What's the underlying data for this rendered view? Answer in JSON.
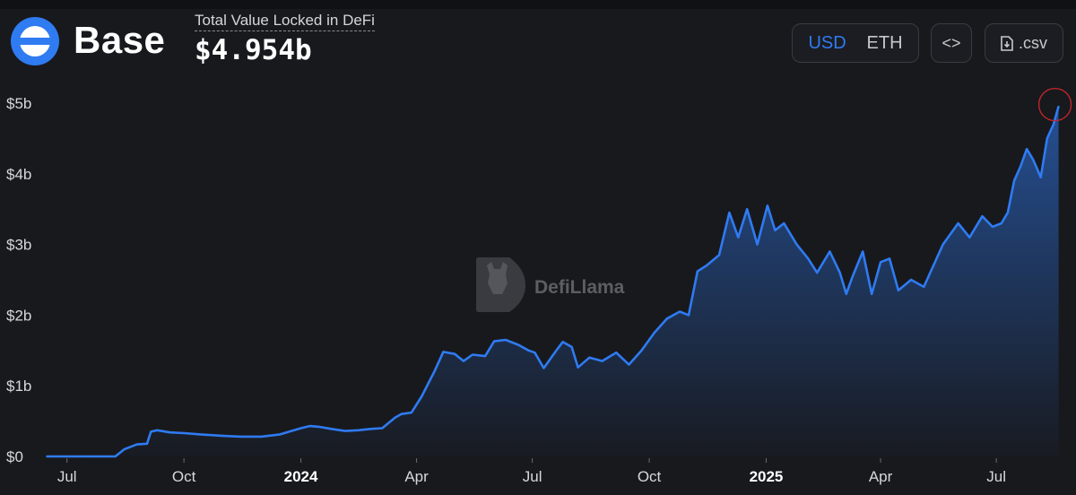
{
  "header": {
    "chain_name": "Base",
    "tvl_label": "Total Value Locked in DeFi",
    "tvl_value": "$4.954b",
    "currency_options": [
      "USD",
      "ETH"
    ],
    "active_currency": "USD",
    "embed_label": "<>",
    "csv_label": ".csv",
    "icons": [
      "base-logo-icon",
      "code-icon",
      "download-file-icon"
    ]
  },
  "watermark": {
    "text": "DefiLlama",
    "icon": "llama-icon"
  },
  "colors": {
    "background": "#18191d",
    "line": "#2f7bf2",
    "highlight_circle": "#c8262b",
    "base_logo": "#2f7bf2"
  },
  "chart_data": {
    "type": "area",
    "title": "",
    "xlabel": "",
    "ylabel": "",
    "ylim": [
      0,
      5
    ],
    "y_unit": "billion USD",
    "y_ticks": [
      "$0",
      "$1b",
      "$2b",
      "$3b",
      "$4b",
      "$5b"
    ],
    "y_tick_values": [
      0,
      1,
      2,
      3,
      4,
      5
    ],
    "x_ticks": [
      {
        "label": "Jul",
        "date": "2023-07-01",
        "bold": false
      },
      {
        "label": "Oct",
        "date": "2023-10-01",
        "bold": false
      },
      {
        "label": "2024",
        "date": "2024-01-01",
        "bold": true
      },
      {
        "label": "Apr",
        "date": "2024-04-01",
        "bold": false
      },
      {
        "label": "Jul",
        "date": "2024-07-01",
        "bold": false
      },
      {
        "label": "Oct",
        "date": "2024-10-01",
        "bold": false
      },
      {
        "label": "2025",
        "date": "2025-01-01",
        "bold": true
      },
      {
        "label": "Apr",
        "date": "2025-04-01",
        "bold": false
      },
      {
        "label": "Jul",
        "date": "2025-07-01",
        "bold": false
      }
    ],
    "xlim": [
      "2023-06-15",
      "2025-08-20"
    ],
    "grid": false,
    "highlight": {
      "date": "2025-08-19",
      "value": 4.954
    },
    "series": [
      {
        "x": [
          "2023-06-15",
          "2023-07-15",
          "2023-08-08",
          "2023-08-15",
          "2023-08-25",
          "2023-09-02",
          "2023-09-05",
          "2023-09-10",
          "2023-09-20",
          "2023-10-01",
          "2023-10-15",
          "2023-11-01",
          "2023-11-15",
          "2023-12-01",
          "2023-12-15",
          "2024-01-01",
          "2024-01-08",
          "2024-01-15",
          "2024-01-25",
          "2024-02-05",
          "2024-02-15",
          "2024-02-25",
          "2024-03-05",
          "2024-03-15",
          "2024-03-20",
          "2024-03-28",
          "2024-04-05",
          "2024-04-15",
          "2024-04-22",
          "2024-05-01",
          "2024-05-08",
          "2024-05-15",
          "2024-05-25",
          "2024-06-01",
          "2024-06-10",
          "2024-06-20",
          "2024-06-28",
          "2024-07-03",
          "2024-07-10",
          "2024-07-20",
          "2024-07-25",
          "2024-08-01",
          "2024-08-06",
          "2024-08-15",
          "2024-08-25",
          "2024-09-05",
          "2024-09-15",
          "2024-09-25",
          "2024-10-05",
          "2024-10-15",
          "2024-10-25",
          "2024-11-01",
          "2024-11-08",
          "2024-11-15",
          "2024-11-25",
          "2024-12-03",
          "2024-12-10",
          "2024-12-17",
          "2024-12-25",
          "2025-01-02",
          "2025-01-08",
          "2025-01-15",
          "2025-01-25",
          "2025-02-03",
          "2025-02-10",
          "2025-02-20",
          "2025-02-28",
          "2025-03-05",
          "2025-03-10",
          "2025-03-18",
          "2025-03-25",
          "2025-04-01",
          "2025-04-08",
          "2025-04-15",
          "2025-04-25",
          "2025-05-05",
          "2025-05-10",
          "2025-05-20",
          "2025-06-01",
          "2025-06-10",
          "2025-06-20",
          "2025-06-28",
          "2025-07-05",
          "2025-07-10",
          "2025-07-15",
          "2025-07-20",
          "2025-07-25",
          "2025-07-30",
          "2025-08-05",
          "2025-08-10",
          "2025-08-15",
          "2025-08-19"
        ],
        "y": [
          0.0,
          0.0,
          0.0,
          0.1,
          0.17,
          0.18,
          0.35,
          0.37,
          0.34,
          0.33,
          0.31,
          0.29,
          0.28,
          0.28,
          0.31,
          0.4,
          0.43,
          0.42,
          0.39,
          0.36,
          0.37,
          0.39,
          0.4,
          0.55,
          0.6,
          0.62,
          0.85,
          1.2,
          1.48,
          1.45,
          1.35,
          1.44,
          1.42,
          1.63,
          1.65,
          1.58,
          1.5,
          1.47,
          1.25,
          1.5,
          1.62,
          1.55,
          1.26,
          1.4,
          1.35,
          1.47,
          1.3,
          1.5,
          1.75,
          1.95,
          2.05,
          2.0,
          2.62,
          2.7,
          2.85,
          3.45,
          3.1,
          3.5,
          3.0,
          3.55,
          3.2,
          3.3,
          3.0,
          2.8,
          2.6,
          2.9,
          2.6,
          2.3,
          2.55,
          2.9,
          2.3,
          2.75,
          2.8,
          2.35,
          2.5,
          2.4,
          2.6,
          3.0,
          3.3,
          3.1,
          3.4,
          3.25,
          3.3,
          3.45,
          3.9,
          4.1,
          4.35,
          4.2,
          3.95,
          4.5,
          4.7,
          4.954
        ]
      }
    ]
  }
}
